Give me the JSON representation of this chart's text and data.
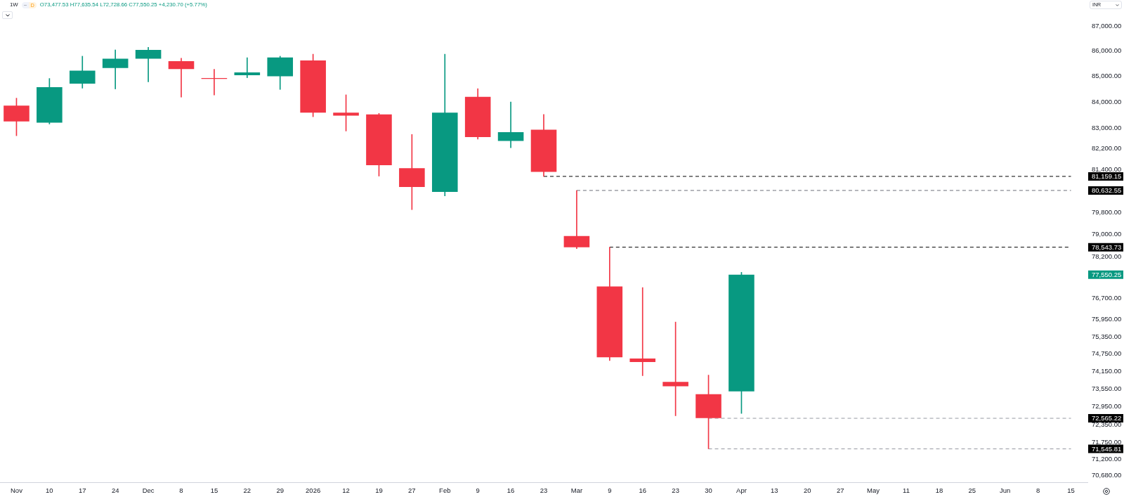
{
  "chart_data": {
    "type": "candlestick",
    "title": "1W",
    "subtitle": "O73,477.53 H77,635.54 L72,728.66 C77,550.25 +4,230.70 (+5.77%)",
    "ylabel": "INR",
    "categories": [
      "Nov",
      "10",
      "17",
      "24",
      "Dec",
      "8",
      "15",
      "22",
      "29",
      "2026",
      "12",
      "19",
      "27",
      "Feb",
      "9",
      "16",
      "23",
      "Mar",
      "9",
      "16",
      "23",
      "30",
      "Apr",
      "13",
      "20",
      "27",
      "May",
      "11",
      "18",
      "25",
      "Jun",
      "8",
      "15"
    ],
    "ohlc": [
      [
        83860,
        84150,
        82700,
        83250
      ],
      [
        83200,
        84920,
        83150,
        84580
      ],
      [
        84720,
        85800,
        84540,
        85230
      ],
      [
        85330,
        86050,
        84510,
        85700
      ],
      [
        85700,
        86150,
        84790,
        86050
      ],
      [
        85600,
        85720,
        84190,
        85290
      ],
      [
        84940,
        85280,
        84270,
        84900
      ],
      [
        85050,
        85740,
        84950,
        85160
      ],
      [
        85010,
        85800,
        84490,
        85750
      ],
      [
        85630,
        85880,
        83430,
        83590
      ],
      [
        83590,
        84280,
        82880,
        83470
      ],
      [
        83520,
        83560,
        81170,
        81580
      ],
      [
        81470,
        82750,
        79920,
        80760
      ],
      [
        80580,
        85880,
        80430,
        83590
      ],
      [
        84200,
        84520,
        82570,
        82650
      ],
      [
        82500,
        84000,
        82240,
        82840
      ],
      [
        82930,
        83520,
        81160,
        81330
      ],
      [
        78950,
        80630,
        78490,
        78540
      ],
      [
        77130,
        78540,
        74530,
        74640
      ],
      [
        74600,
        77090,
        74010,
        74480
      ],
      [
        73800,
        75870,
        72650,
        73650
      ],
      [
        73380,
        74030,
        71550,
        72570
      ],
      [
        73477.53,
        77635.54,
        72728.66,
        77550.25
      ],
      null,
      null,
      null,
      null,
      null,
      null,
      null,
      null,
      null,
      null
    ],
    "colors": [
      "#f23645",
      "#089981",
      "#089981",
      "#089981",
      "#089981",
      "#f23645",
      "#f23645",
      "#089981",
      "#089981",
      "#f23645",
      "#f23645",
      "#f23645",
      "#f23645",
      "#089981",
      "#f23645",
      "#089981",
      "#f23645",
      "#f23645",
      "#f23645",
      "#f23645",
      "#f23645",
      "#f23645",
      "#089981",
      null,
      null,
      null,
      null,
      null,
      null,
      null,
      null,
      null,
      null
    ],
    "series": [
      {
        "type": "line",
        "name": "81,159.15",
        "color": "#000000",
        "line_style": "dashed",
        "values": [
          null,
          null,
          null,
          null,
          null,
          null,
          null,
          null,
          null,
          null,
          null,
          null,
          null,
          null,
          null,
          null,
          81159.15,
          81159.15,
          81159.15,
          81159.15,
          81159.15,
          81159.15,
          81159.15,
          81159.15,
          81159.15,
          81159.15,
          81159.15,
          81159.15,
          81159.15,
          81159.15,
          81159.15,
          81159.15,
          81159.15
        ]
      },
      {
        "type": "line",
        "name": "80,632.55",
        "color": "#6a6d78",
        "line_style": "dashed",
        "values": [
          null,
          null,
          null,
          null,
          null,
          null,
          null,
          null,
          null,
          null,
          null,
          null,
          null,
          null,
          null,
          null,
          null,
          80632.55,
          80632.55,
          80632.55,
          80632.55,
          80632.55,
          80632.55,
          80632.55,
          80632.55,
          80632.55,
          80632.55,
          80632.55,
          80632.55,
          80632.55,
          80632.55,
          80632.55,
          80632.55
        ]
      },
      {
        "type": "line",
        "name": "78,543.73",
        "color": "#000000",
        "line_style": "dashed",
        "values": [
          null,
          null,
          null,
          null,
          null,
          null,
          null,
          null,
          null,
          null,
          null,
          null,
          null,
          null,
          null,
          null,
          null,
          null,
          78543.73,
          78543.73,
          78543.73,
          78543.73,
          78543.73,
          78543.73,
          78543.73,
          78543.73,
          78543.73,
          78543.73,
          78543.73,
          78543.73,
          78543.73,
          78543.73,
          78543.73
        ]
      },
      {
        "type": "line",
        "name": "72,565.22",
        "color": "#9598a1",
        "line_style": "dashed",
        "values": [
          null,
          null,
          null,
          null,
          null,
          null,
          null,
          null,
          null,
          null,
          null,
          null,
          null,
          null,
          null,
          null,
          null,
          null,
          null,
          null,
          null,
          72565.22,
          72565.22,
          72565.22,
          72565.22,
          72565.22,
          72565.22,
          72565.22,
          72565.22,
          72565.22,
          72565.22,
          72565.22,
          72565.22
        ]
      },
      {
        "type": "line",
        "name": "71,545.81",
        "color": "#9598a1",
        "line_style": "dashed",
        "values": [
          null,
          null,
          null,
          null,
          null,
          null,
          null,
          null,
          null,
          null,
          null,
          null,
          null,
          null,
          null,
          null,
          null,
          null,
          null,
          null,
          null,
          71545.81,
          71545.81,
          71545.81,
          71545.81,
          71545.81,
          71545.81,
          71545.81,
          71545.81,
          71545.81,
          71545.81,
          71545.81,
          71545.81
        ]
      }
    ],
    "log": true,
    "ylim": [
      70450,
      88060
    ],
    "yticks": [
      {
        "value": 87000,
        "label": "87,000.00"
      },
      {
        "value": 86000,
        "label": "86,000.00"
      },
      {
        "value": 85000,
        "label": "85,000.00"
      },
      {
        "value": 84000,
        "label": "84,000.00"
      },
      {
        "value": 83000,
        "label": "83,000.00"
      },
      {
        "value": 82200,
        "label": "82,200.00"
      },
      {
        "value": 81400,
        "label": "81,400.00"
      },
      {
        "value": 79800,
        "label": "79,800.00"
      },
      {
        "value": 79000,
        "label": "79,000.00"
      },
      {
        "value": 78200,
        "label": "78,200.00"
      },
      {
        "value": 76700,
        "label": "76,700.00"
      },
      {
        "value": 75950,
        "label": "75,950.00"
      },
      {
        "value": 75350,
        "label": "75,350.00"
      },
      {
        "value": 74750,
        "label": "74,750.00"
      },
      {
        "value": 74150,
        "label": "74,150.00"
      },
      {
        "value": 73550,
        "label": "73,550.00"
      },
      {
        "value": 72950,
        "label": "72,950.00"
      },
      {
        "value": 72350,
        "label": "72,350.00"
      },
      {
        "value": 71750,
        "label": "71,750.00"
      },
      {
        "value": 71200,
        "label": "71,200.00"
      },
      {
        "value": 70680,
        "label": "70,680.00"
      }
    ],
    "annotations": [
      "D",
      "77,550.25"
    ]
  }
}
